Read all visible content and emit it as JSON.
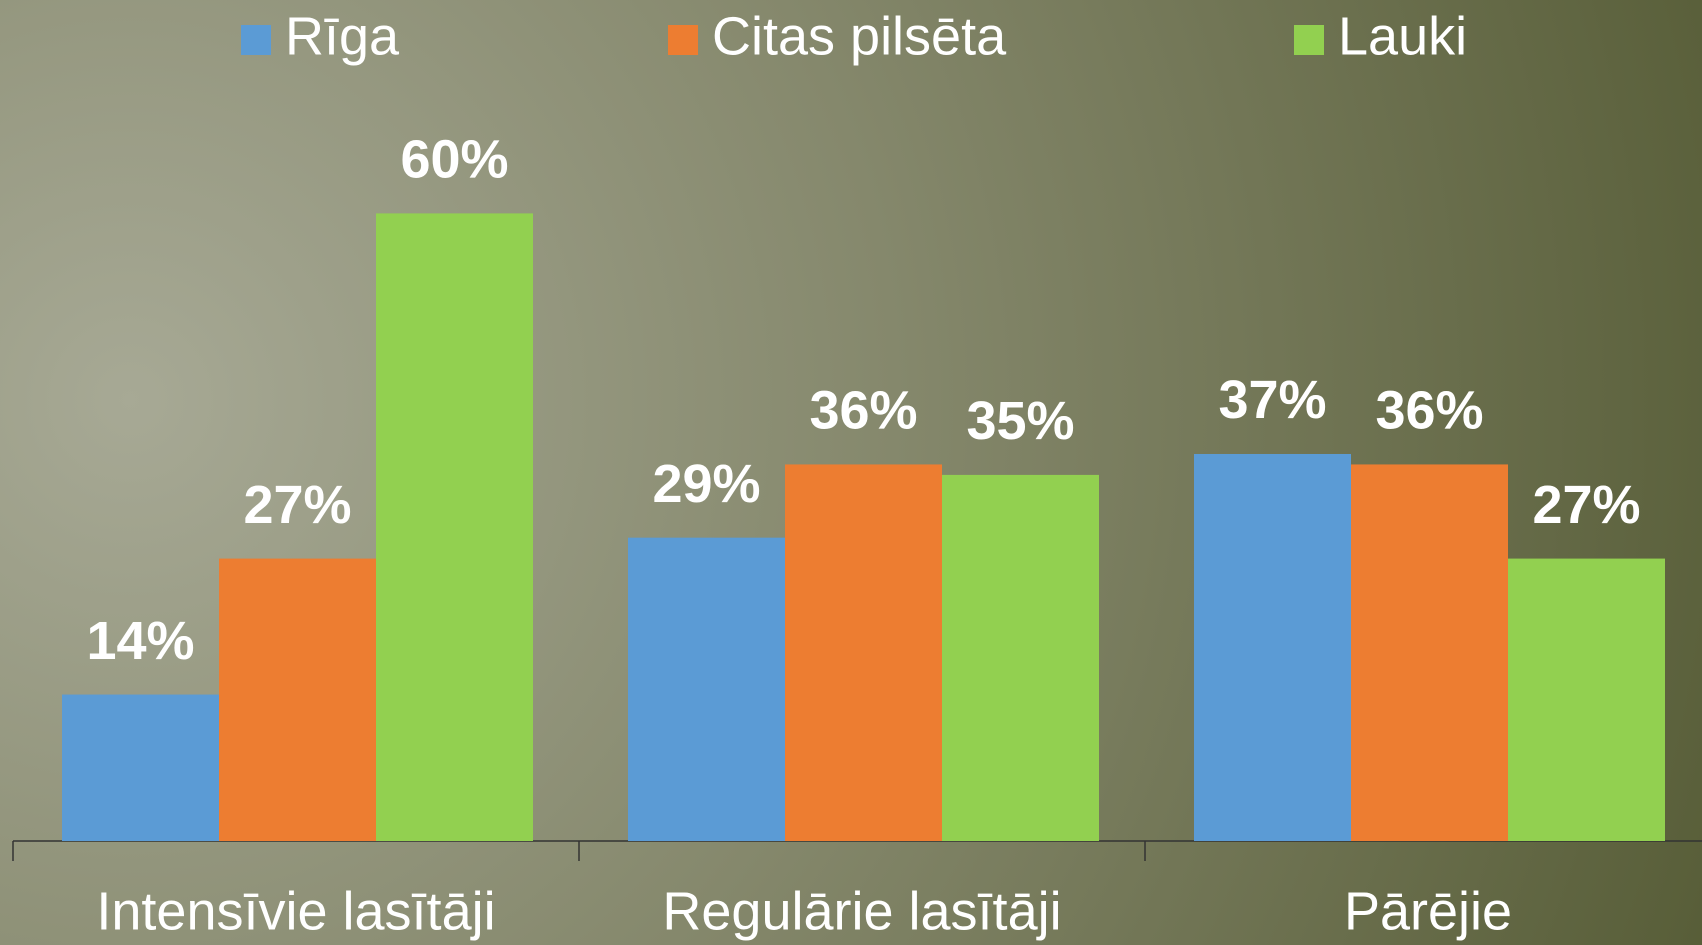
{
  "chart_data": {
    "type": "bar",
    "categories": [
      "Intensīvie lasītāji",
      "Regulārie lasītāji",
      "Pārējie"
    ],
    "series": [
      {
        "name": "Rīga",
        "color": "#5b9bd5",
        "values": [
          14,
          29,
          37
        ],
        "value_labels": [
          "14%",
          "29%",
          "37%"
        ]
      },
      {
        "name": "Citas pilsēta",
        "color": "#ed7d31",
        "values": [
          27,
          36,
          36
        ],
        "value_labels": [
          "27%",
          "36%",
          "36%"
        ]
      },
      {
        "name": "Lauki",
        "color": "#92d050",
        "values": [
          60,
          35,
          27
        ],
        "value_labels": [
          "60%",
          "35%",
          "27%"
        ]
      }
    ],
    "legend": "top"
  }
}
